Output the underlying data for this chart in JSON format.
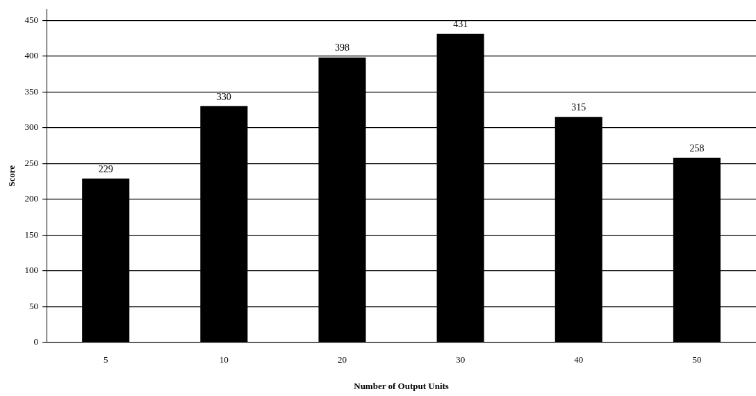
{
  "chart_data": {
    "type": "bar",
    "xlabel": "Number of Output Units",
    "ylabel": "Score",
    "categories": [
      "5",
      "10",
      "20",
      "30",
      "40",
      "50"
    ],
    "values": [
      229,
      330,
      398,
      431,
      315,
      258
    ],
    "color": "#000000",
    "ylim": [
      0,
      465
    ],
    "yticks": [
      0,
      50,
      100,
      150,
      200,
      250,
      300,
      350,
      400,
      450
    ],
    "grid": "y",
    "data_labels": true,
    "legend": false
  }
}
